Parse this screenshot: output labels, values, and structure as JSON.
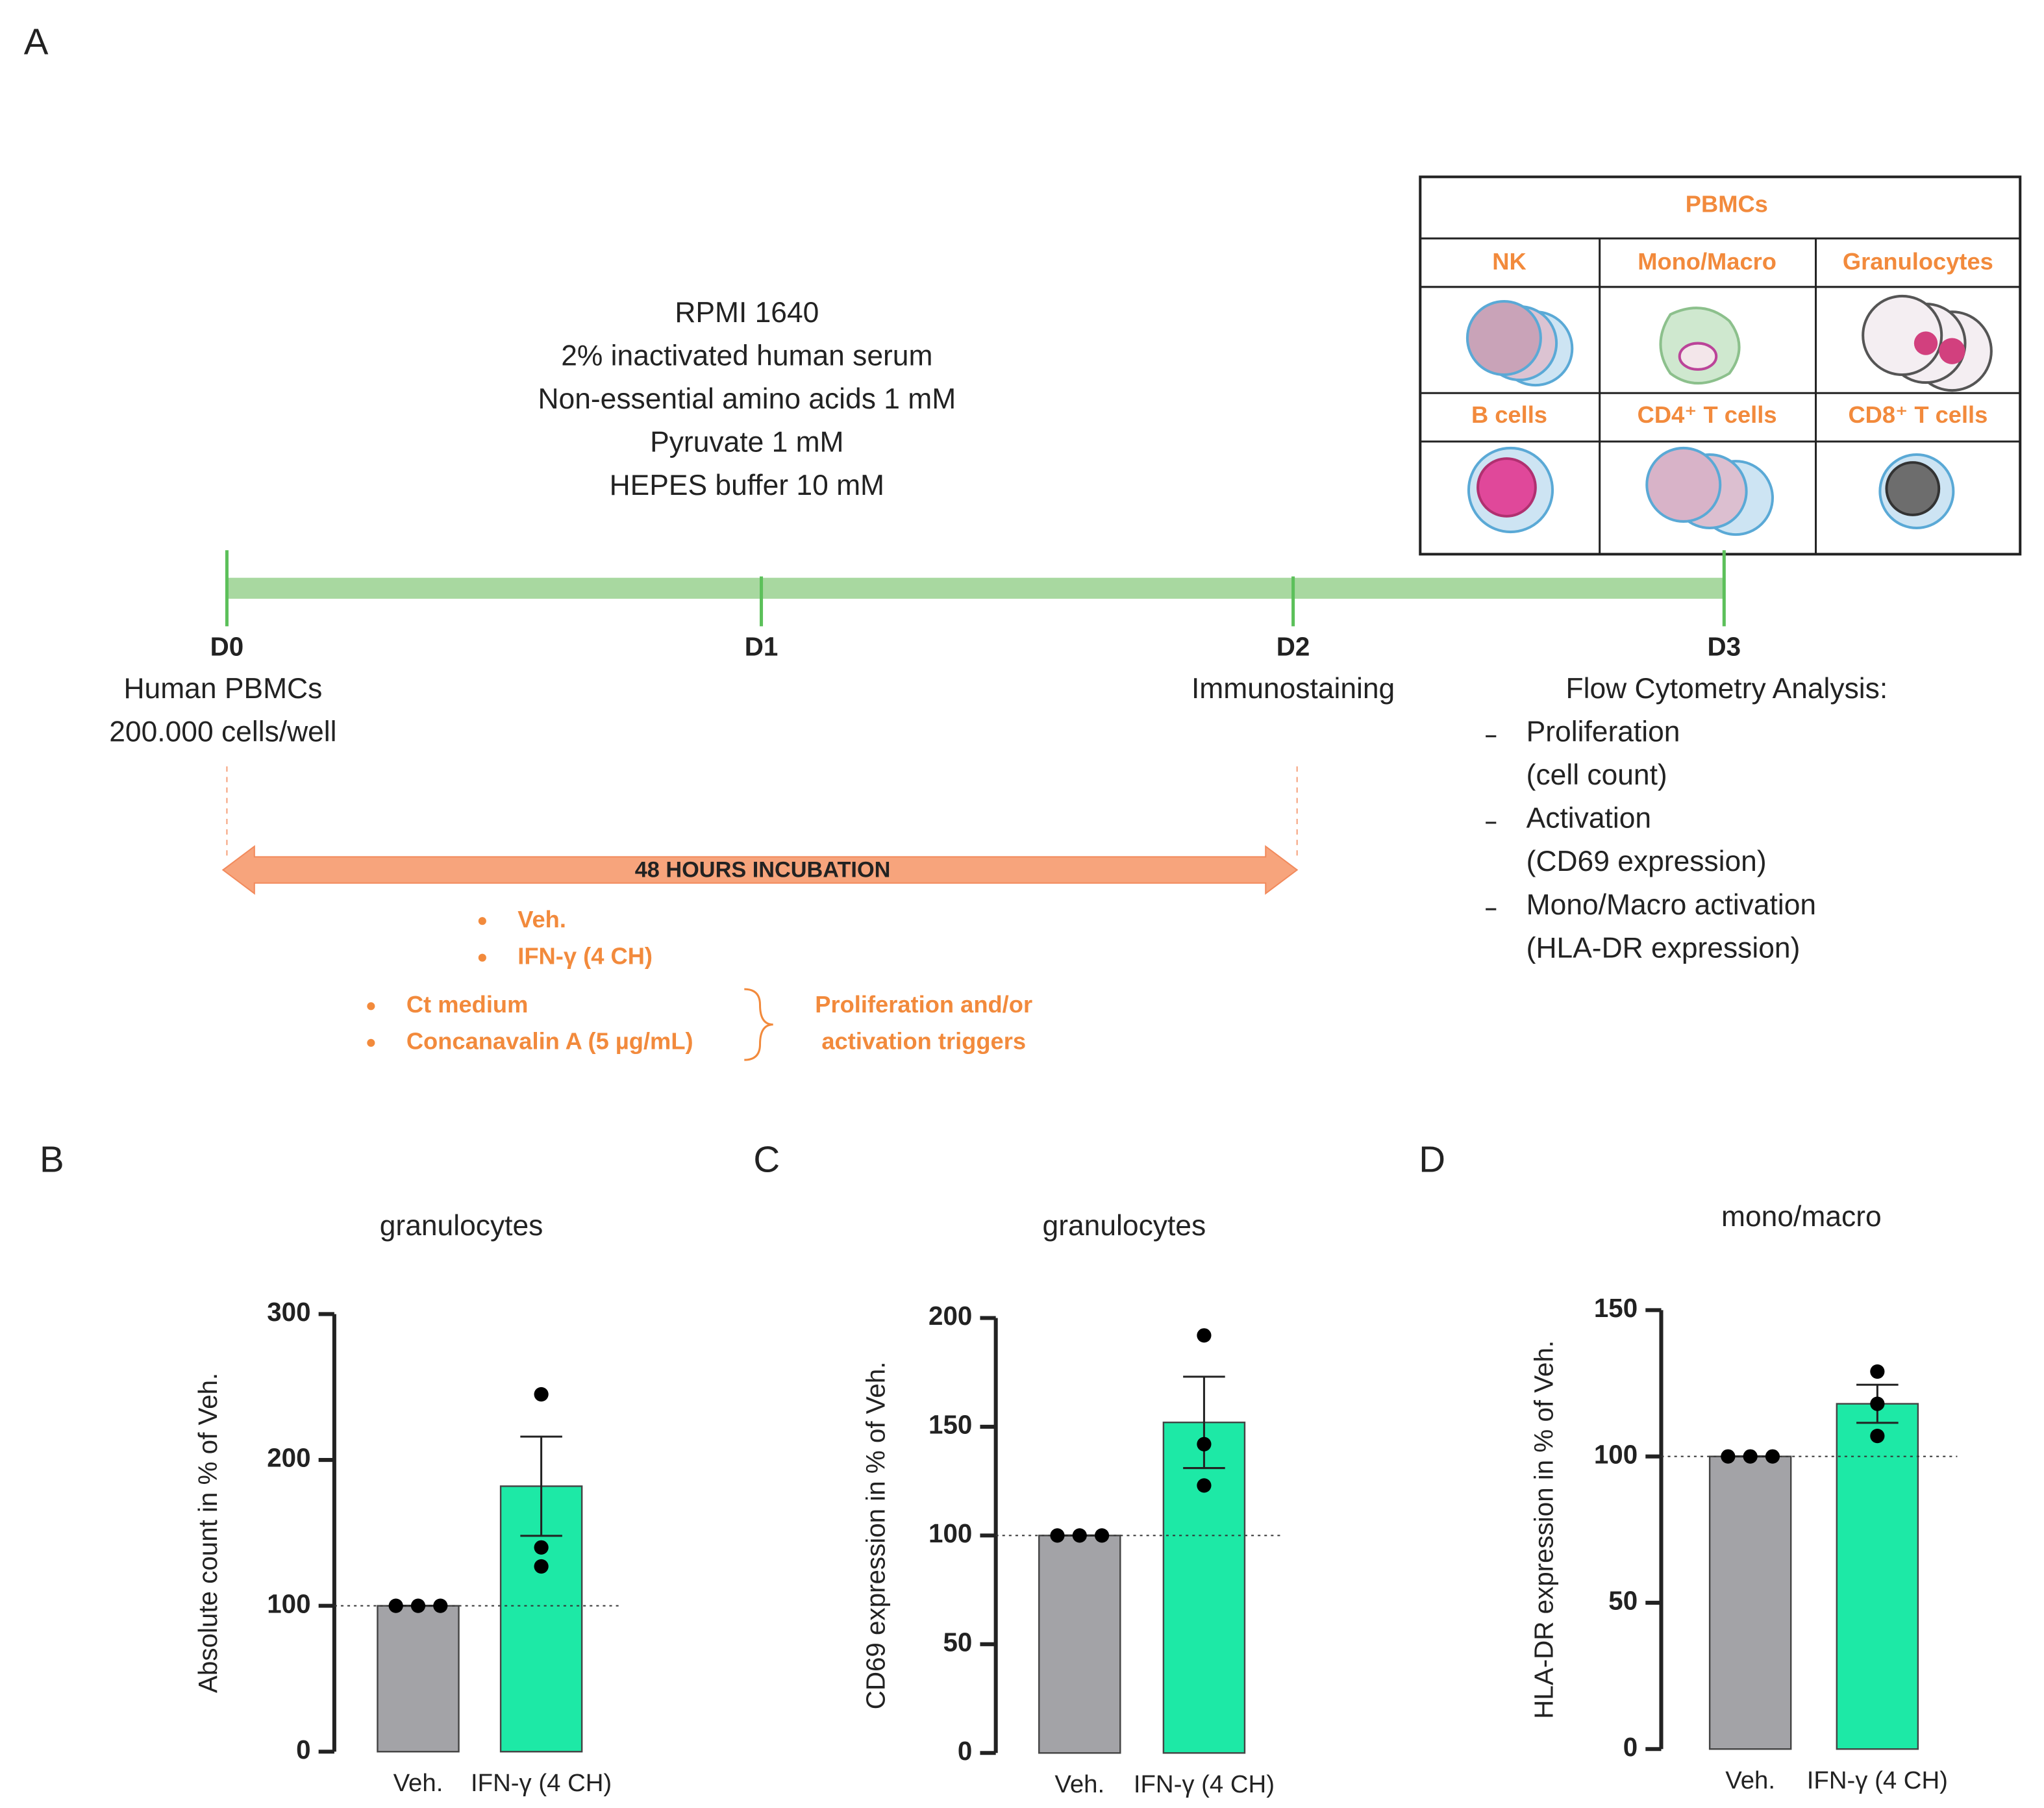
{
  "panel_a": {
    "label": "A",
    "medium": [
      "RPMI 1640",
      "2% inactivated human serum",
      "Non-essential amino acids 1 mM",
      "Pyruvate 1 mM",
      "HEPES buffer 10 mM"
    ],
    "days": [
      {
        "day": "D0",
        "desc": [
          "Human PBMCs",
          "200.000 cells/well"
        ]
      },
      {
        "day": "D1"
      },
      {
        "day": "D2",
        "desc": [
          "Immunostaining"
        ]
      },
      {
        "day": "D3"
      }
    ],
    "analysis": {
      "title": "Flow Cytometry Analysis:",
      "items": [
        [
          "Proliferation",
          "(cell count)"
        ],
        [
          "Activation",
          "(CD69 expression)"
        ],
        [
          "Mono/Macro activation",
          "(HLA-DR expression)"
        ]
      ]
    },
    "incubation": "48 HOURS INCUBATION",
    "treatments": [
      "Veh.",
      "IFN-γ (4 CH)"
    ],
    "triggers": [
      "Ct medium",
      "Concanavalin A (5 µg/mL)"
    ],
    "triggers_note": [
      "Proliferation and/or",
      "activation triggers"
    ],
    "table": {
      "title": "PBMCs",
      "cells": [
        "NK",
        "Mono/Macro",
        "Granulocytes",
        "B cells",
        "CD4⁺ T cells",
        "CD8⁺ T cells"
      ]
    }
  },
  "chart_data": [
    {
      "type": "bar",
      "label": "B",
      "title": "granulocytes",
      "ylabel": "Absolute count in % of Veh.",
      "categories": [
        "Veh.",
        "IFN-γ (4 CH)"
      ],
      "values": [
        100,
        182
      ],
      "errors": [
        0,
        34
      ],
      "points": [
        [
          100,
          100,
          100
        ],
        [
          245,
          140,
          127
        ]
      ],
      "colors": [
        "#a3a3a7",
        "#1de9a6"
      ],
      "reference_line": 100,
      "ylim": [
        0,
        300
      ],
      "yticks": [
        0,
        100,
        200,
        300
      ]
    },
    {
      "type": "bar",
      "label": "C",
      "title": "granulocytes",
      "ylabel": "CD69 expression in % of Veh.",
      "categories": [
        "Veh.",
        "IFN-γ (4 CH)"
      ],
      "values": [
        100,
        152
      ],
      "errors": [
        0,
        21
      ],
      "points": [
        [
          100,
          100,
          100
        ],
        [
          192,
          142,
          123
        ]
      ],
      "colors": [
        "#a3a3a7",
        "#1de9a6"
      ],
      "reference_line": 100,
      "ylim": [
        0,
        200
      ],
      "yticks": [
        0,
        50,
        100,
        150,
        200
      ]
    },
    {
      "type": "bar",
      "label": "D",
      "title": "mono/macro",
      "ylabel": "HLA-DR expression in % of Veh.",
      "categories": [
        "Veh.",
        "IFN-γ (4 CH)"
      ],
      "values": [
        100,
        118
      ],
      "errors": [
        0,
        6.5
      ],
      "points": [
        [
          100,
          100,
          100
        ],
        [
          129,
          118,
          107
        ]
      ],
      "colors": [
        "#a3a3a7",
        "#1de9a6"
      ],
      "reference_line": 100,
      "ylim": [
        0,
        150
      ],
      "yticks": [
        0,
        50,
        100,
        150
      ]
    }
  ]
}
